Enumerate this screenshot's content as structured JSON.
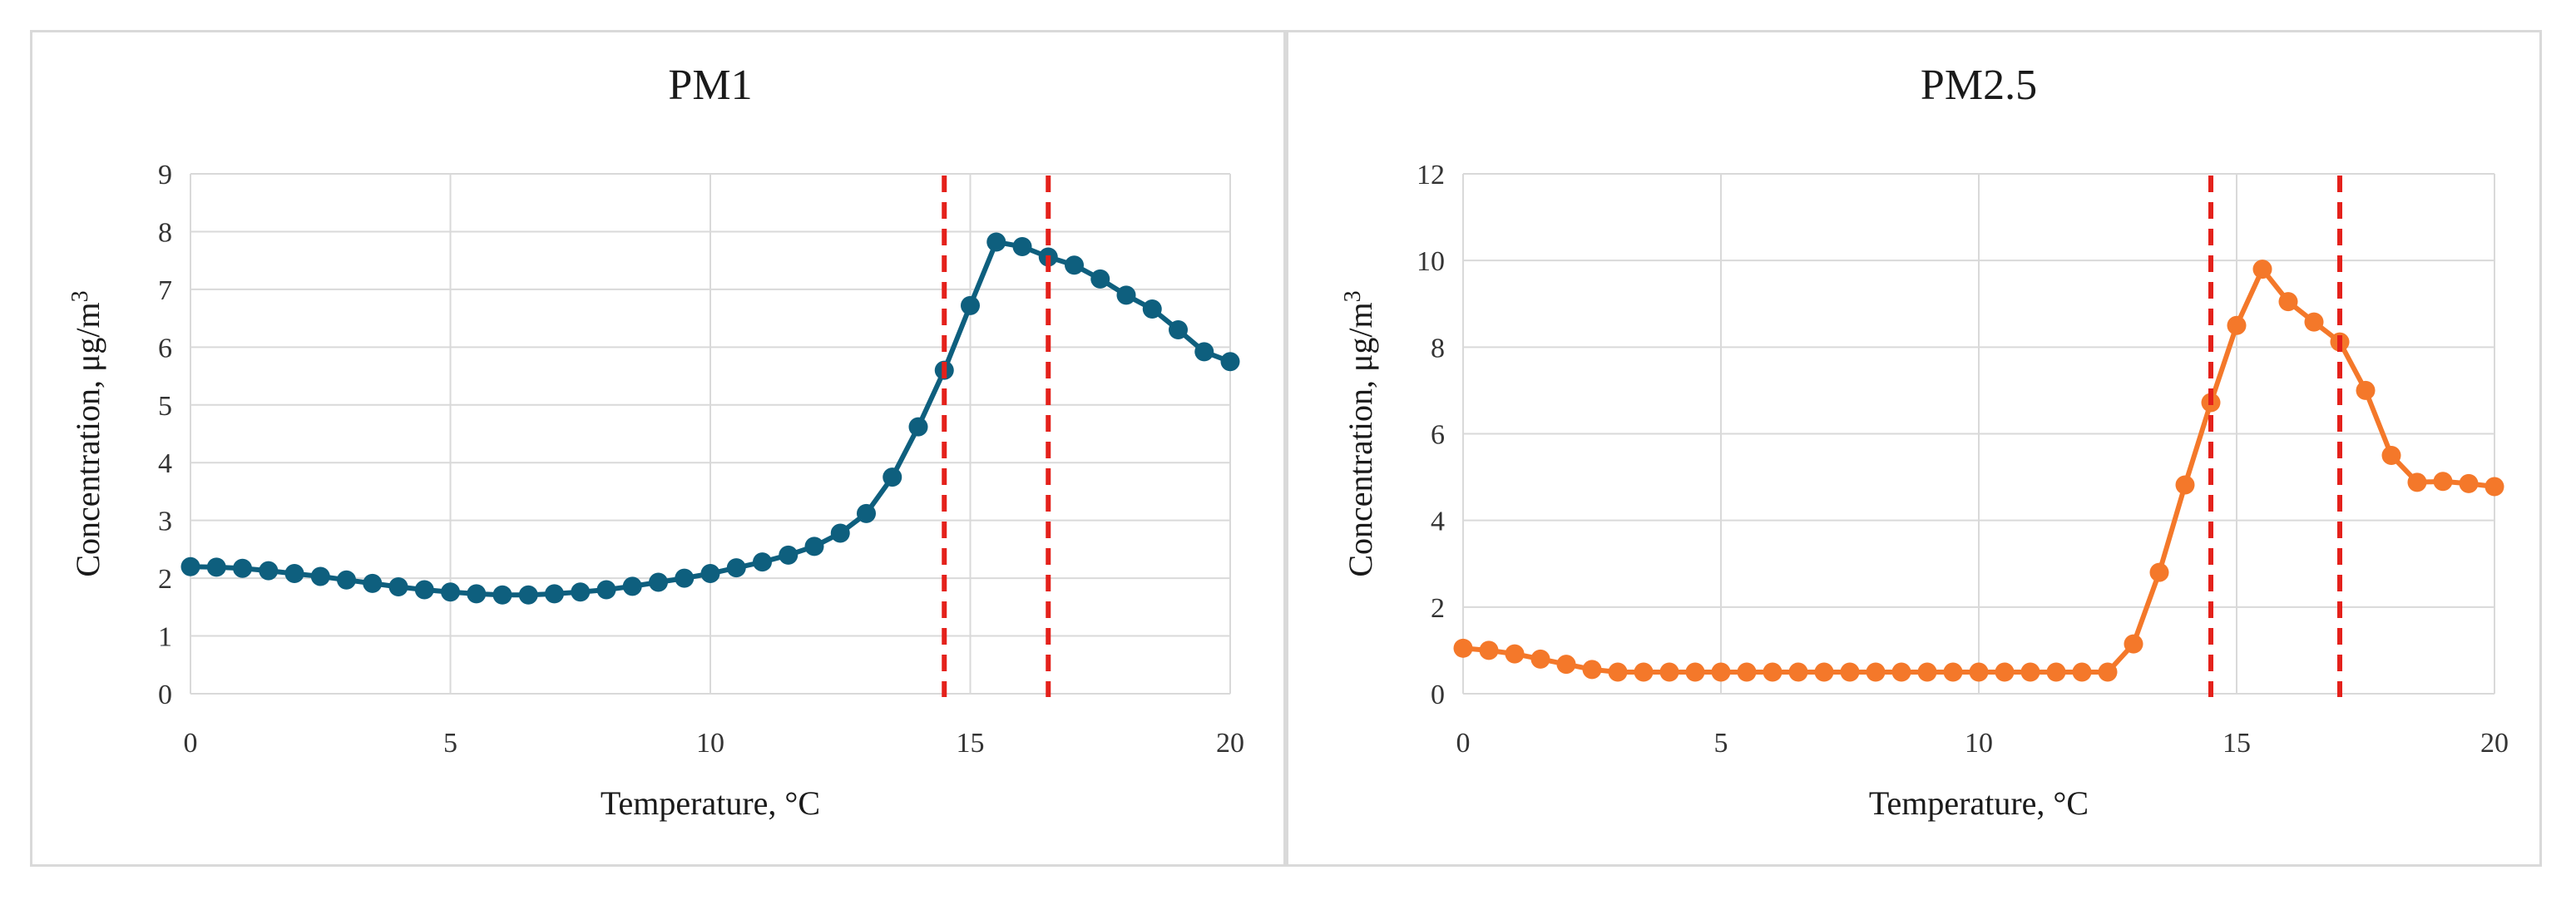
{
  "chart_data": [
    {
      "type": "line",
      "title": "PM1",
      "xlabel": "Temperature, °C",
      "ylabel": "Concentration, μg/m",
      "ylabel_superscript": "3",
      "xlim": [
        0,
        20
      ],
      "ylim": [
        0,
        9
      ],
      "x_ticks": [
        "0",
        "5",
        "10",
        "15",
        "20"
      ],
      "y_ticks": [
        "0",
        "1",
        "2",
        "3",
        "4",
        "5",
        "6",
        "7",
        "8",
        "9"
      ],
      "grid": true,
      "legend": "none",
      "series_color": "#0e5f7e",
      "reference_lines": {
        "x": [
          14.5,
          16.5
        ],
        "color": "#e4211b",
        "style": "dashed"
      },
      "x": [
        0,
        0.5,
        1,
        1.5,
        2,
        2.5,
        3,
        3.5,
        4,
        4.5,
        5,
        5.5,
        6,
        6.5,
        7,
        7.5,
        8,
        8.5,
        9,
        9.5,
        10,
        10.5,
        11,
        11.5,
        12,
        12.5,
        13,
        13.5,
        14,
        14.5,
        15,
        15.5,
        16,
        16.5,
        17,
        17.5,
        18,
        18.5,
        19,
        19.5,
        20
      ],
      "series": [
        {
          "values": [
            2.2,
            2.19,
            2.17,
            2.13,
            2.08,
            2.03,
            1.97,
            1.91,
            1.85,
            1.8,
            1.76,
            1.73,
            1.71,
            1.71,
            1.73,
            1.76,
            1.8,
            1.86,
            1.93,
            2.0,
            2.08,
            2.18,
            2.28,
            2.4,
            2.55,
            2.78,
            3.12,
            3.75,
            4.62,
            5.6,
            6.72,
            7.82,
            7.74,
            7.56,
            7.42,
            7.18,
            6.9,
            6.66,
            6.3,
            5.92,
            5.75
          ]
        }
      ]
    },
    {
      "type": "line",
      "title": "PM2.5",
      "xlabel": "Temperature, °C",
      "ylabel": "Concentration, μg/m",
      "ylabel_superscript": "3",
      "xlim": [
        0,
        20
      ],
      "ylim": [
        0,
        12
      ],
      "x_ticks": [
        "0",
        "5",
        "10",
        "15",
        "20"
      ],
      "y_ticks": [
        "0",
        "2",
        "4",
        "6",
        "8",
        "10",
        "12"
      ],
      "grid": true,
      "legend": "none",
      "series_color": "#f4782a",
      "reference_lines": {
        "x": [
          14.5,
          17
        ],
        "color": "#e4211b",
        "style": "dashed"
      },
      "x": [
        0,
        0.5,
        1,
        1.5,
        2,
        2.5,
        3,
        3.5,
        4,
        4.5,
        5,
        5.5,
        6,
        6.5,
        7,
        7.5,
        8,
        8.5,
        9,
        9.5,
        10,
        10.5,
        11,
        11.5,
        12,
        12.5,
        13,
        13.5,
        14,
        14.5,
        15,
        15.5,
        16,
        16.5,
        17,
        17.5,
        18,
        18.5,
        19,
        19.5,
        20
      ],
      "series": [
        {
          "values": [
            1.05,
            1.0,
            0.92,
            0.8,
            0.68,
            0.56,
            0.5,
            0.5,
            0.5,
            0.5,
            0.5,
            0.5,
            0.5,
            0.5,
            0.5,
            0.5,
            0.5,
            0.5,
            0.5,
            0.5,
            0.5,
            0.5,
            0.5,
            0.5,
            0.5,
            0.5,
            1.15,
            2.8,
            4.82,
            6.72,
            8.5,
            9.8,
            9.05,
            8.58,
            8.12,
            7.0,
            5.5,
            4.88,
            4.9,
            4.85,
            4.78
          ]
        }
      ]
    }
  ]
}
